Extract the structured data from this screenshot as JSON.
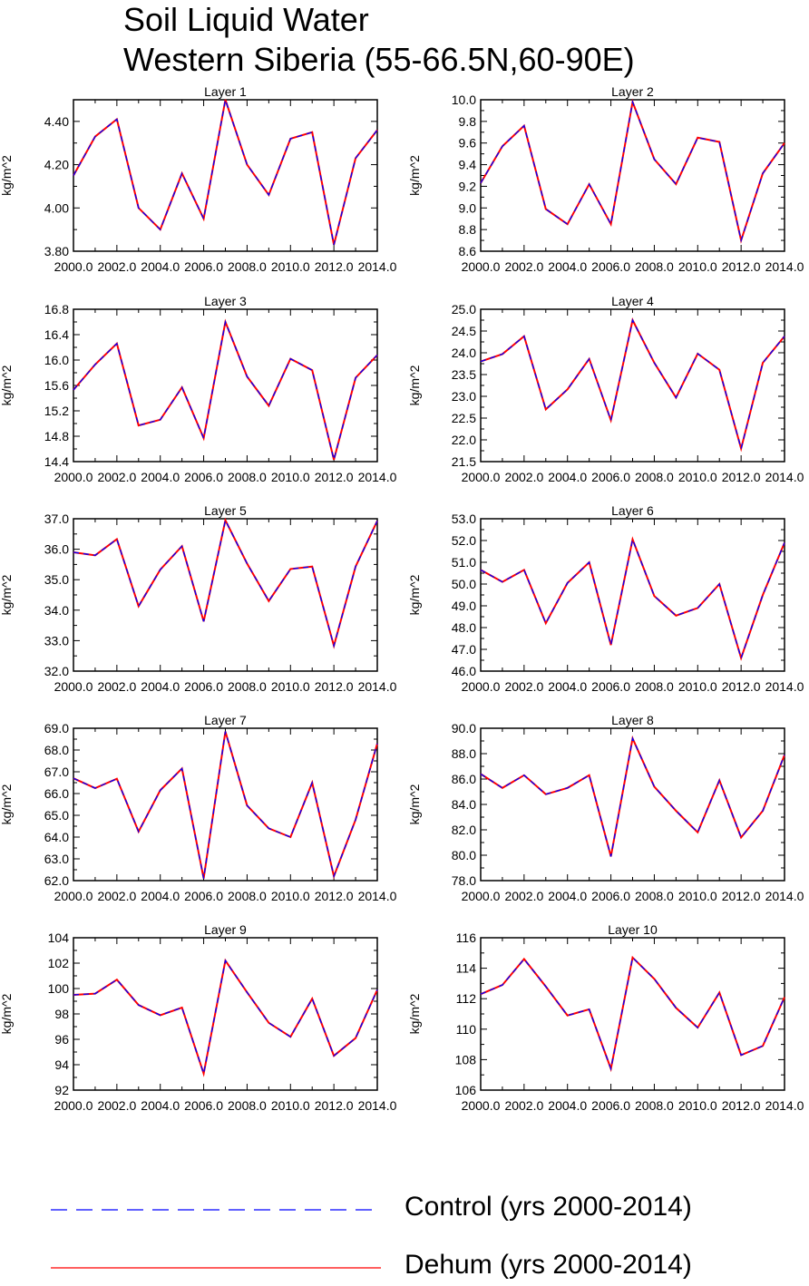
{
  "title": {
    "line1": "Soil Liquid Water",
    "line2": "Western Siberia (55-66.5N,60-90E)"
  },
  "colors": {
    "control": "#0000ff",
    "dehum": "#ff0000",
    "axis": "#000000"
  },
  "legend": [
    {
      "label": "Control (yrs 2000-2014)",
      "color": "#0000ff",
      "style": "dashed"
    },
    {
      "label": "Dehum (yrs 2000-2014)",
      "color": "#ff0000",
      "style": "solid"
    }
  ],
  "chart_data": [
    {
      "type": "line",
      "title": "Layer 1",
      "ylabel": "kg/m^2",
      "xlabel": "",
      "xlim": [
        2000,
        2014
      ],
      "ylim": [
        3.8,
        4.5
      ],
      "xticks": [
        2000,
        2002,
        2004,
        2006,
        2008,
        2010,
        2012,
        2014
      ],
      "xtick_labels": [
        "2000.0",
        "2002.0",
        "2004.0",
        "2006.0",
        "2008.0",
        "2010.0",
        "2012.0",
        "2014.0"
      ],
      "yticks": [
        3.8,
        4.0,
        4.2,
        4.4
      ],
      "ytick_labels": [
        "3.80",
        "4.00",
        "4.20",
        "4.40"
      ],
      "x": [
        2000,
        2001,
        2002,
        2003,
        2004,
        2005,
        2006,
        2007,
        2008,
        2009,
        2010,
        2011,
        2012,
        2013,
        2014
      ],
      "series": [
        {
          "name": "Dehum (yrs 2000-2014)",
          "values": [
            4.15,
            4.33,
            4.41,
            4.0,
            3.9,
            4.16,
            3.95,
            4.5,
            4.2,
            4.06,
            4.32,
            4.35,
            3.83,
            4.23,
            4.36
          ]
        },
        {
          "name": "Control (yrs 2000-2014)",
          "values": [
            4.15,
            4.33,
            4.41,
            4.0,
            3.9,
            4.16,
            3.95,
            4.5,
            4.2,
            4.06,
            4.32,
            4.35,
            3.83,
            4.23,
            4.36
          ]
        }
      ]
    },
    {
      "type": "line",
      "title": "Layer 2",
      "ylabel": "kg/m^2",
      "xlabel": "",
      "xlim": [
        2000,
        2014
      ],
      "ylim": [
        8.6,
        10.0
      ],
      "xticks": [
        2000,
        2002,
        2004,
        2006,
        2008,
        2010,
        2012,
        2014
      ],
      "xtick_labels": [
        "2000.0",
        "2002.0",
        "2004.0",
        "2006.0",
        "2008.0",
        "2010.0",
        "2012.0",
        "2014.0"
      ],
      "yticks": [
        8.6,
        8.8,
        9.0,
        9.2,
        9.4,
        9.6,
        9.8,
        10.0
      ],
      "ytick_labels": [
        "8.6",
        "8.8",
        "9.0",
        "9.2",
        "9.4",
        "9.6",
        "9.8",
        "10.0"
      ],
      "x": [
        2000,
        2001,
        2002,
        2003,
        2004,
        2005,
        2006,
        2007,
        2008,
        2009,
        2010,
        2011,
        2012,
        2013,
        2014
      ],
      "series": [
        {
          "name": "Dehum (yrs 2000-2014)",
          "values": [
            9.23,
            9.57,
            9.76,
            8.99,
            8.85,
            9.22,
            8.85,
            9.98,
            9.45,
            9.22,
            9.65,
            9.61,
            8.7,
            9.32,
            9.6
          ]
        },
        {
          "name": "Control (yrs 2000-2014)",
          "values": [
            9.23,
            9.57,
            9.76,
            8.99,
            8.85,
            9.22,
            8.85,
            9.98,
            9.45,
            9.22,
            9.65,
            9.61,
            8.7,
            9.32,
            9.6
          ]
        }
      ]
    },
    {
      "type": "line",
      "title": "Layer 3",
      "ylabel": "kg/m^2",
      "xlabel": "",
      "xlim": [
        2000,
        2014
      ],
      "ylim": [
        14.4,
        16.8
      ],
      "xticks": [
        2000,
        2002,
        2004,
        2006,
        2008,
        2010,
        2012,
        2014
      ],
      "xtick_labels": [
        "2000.0",
        "2002.0",
        "2004.0",
        "2006.0",
        "2008.0",
        "2010.0",
        "2012.0",
        "2014.0"
      ],
      "yticks": [
        14.4,
        14.8,
        15.2,
        15.6,
        16.0,
        16.4,
        16.8
      ],
      "ytick_labels": [
        "14.4",
        "14.8",
        "15.2",
        "15.6",
        "16.0",
        "16.4",
        "16.8"
      ],
      "x": [
        2000,
        2001,
        2002,
        2003,
        2004,
        2005,
        2006,
        2007,
        2008,
        2009,
        2010,
        2011,
        2012,
        2013,
        2014
      ],
      "series": [
        {
          "name": "Dehum (yrs 2000-2014)",
          "values": [
            15.53,
            15.93,
            16.26,
            14.97,
            15.06,
            15.57,
            14.77,
            16.6,
            15.74,
            15.28,
            16.02,
            15.84,
            14.43,
            15.72,
            16.08
          ]
        },
        {
          "name": "Control (yrs 2000-2014)",
          "values": [
            15.53,
            15.93,
            16.26,
            14.97,
            15.06,
            15.57,
            14.77,
            16.6,
            15.74,
            15.28,
            16.02,
            15.84,
            14.43,
            15.72,
            16.08
          ]
        }
      ]
    },
    {
      "type": "line",
      "title": "Layer 4",
      "ylabel": "kg/m^2",
      "xlabel": "",
      "xlim": [
        2000,
        2014
      ],
      "ylim": [
        21.5,
        25.0
      ],
      "xticks": [
        2000,
        2002,
        2004,
        2006,
        2008,
        2010,
        2012,
        2014
      ],
      "xtick_labels": [
        "2000.0",
        "2002.0",
        "2004.0",
        "2006.0",
        "2008.0",
        "2010.0",
        "2012.0",
        "2014.0"
      ],
      "yticks": [
        21.5,
        22.0,
        22.5,
        23.0,
        23.5,
        24.0,
        24.5,
        25.0
      ],
      "ytick_labels": [
        "21.5",
        "22.0",
        "22.5",
        "23.0",
        "23.5",
        "24.0",
        "24.5",
        "25.0"
      ],
      "x": [
        2000,
        2001,
        2002,
        2003,
        2004,
        2005,
        2006,
        2007,
        2008,
        2009,
        2010,
        2011,
        2012,
        2013,
        2014
      ],
      "series": [
        {
          "name": "Dehum (yrs 2000-2014)",
          "values": [
            23.8,
            23.97,
            24.38,
            22.7,
            23.16,
            23.86,
            22.45,
            24.75,
            23.77,
            22.97,
            23.98,
            23.61,
            21.8,
            23.77,
            24.38
          ]
        },
        {
          "name": "Control (yrs 2000-2014)",
          "values": [
            23.8,
            23.97,
            24.38,
            22.7,
            23.16,
            23.86,
            22.45,
            24.75,
            23.77,
            22.97,
            23.98,
            23.61,
            21.8,
            23.77,
            24.38
          ]
        }
      ]
    },
    {
      "type": "line",
      "title": "Layer 5",
      "ylabel": "kg/m^2",
      "xlabel": "",
      "xlim": [
        2000,
        2014
      ],
      "ylim": [
        32.0,
        37.0
      ],
      "xticks": [
        2000,
        2002,
        2004,
        2006,
        2008,
        2010,
        2012,
        2014
      ],
      "xtick_labels": [
        "2000.0",
        "2002.0",
        "2004.0",
        "2006.0",
        "2008.0",
        "2010.0",
        "2012.0",
        "2014.0"
      ],
      "yticks": [
        32.0,
        33.0,
        34.0,
        35.0,
        36.0,
        37.0
      ],
      "ytick_labels": [
        "32.0",
        "33.0",
        "34.0",
        "35.0",
        "36.0",
        "37.0"
      ],
      "x": [
        2000,
        2001,
        2002,
        2003,
        2004,
        2005,
        2006,
        2007,
        2008,
        2009,
        2010,
        2011,
        2012,
        2013,
        2014
      ],
      "series": [
        {
          "name": "Dehum (yrs 2000-2014)",
          "values": [
            35.9,
            35.8,
            36.33,
            34.13,
            35.33,
            36.1,
            33.63,
            36.95,
            35.53,
            34.3,
            35.35,
            35.43,
            32.83,
            35.43,
            36.93
          ]
        },
        {
          "name": "Control (yrs 2000-2014)",
          "values": [
            35.9,
            35.8,
            36.33,
            34.13,
            35.33,
            36.1,
            33.63,
            36.95,
            35.53,
            34.3,
            35.35,
            35.43,
            32.83,
            35.43,
            36.93
          ]
        }
      ]
    },
    {
      "type": "line",
      "title": "Layer 6",
      "ylabel": "kg/m^2",
      "xlabel": "",
      "xlim": [
        2000,
        2014
      ],
      "ylim": [
        46.0,
        53.0
      ],
      "xticks": [
        2000,
        2002,
        2004,
        2006,
        2008,
        2010,
        2012,
        2014
      ],
      "xtick_labels": [
        "2000.0",
        "2002.0",
        "2004.0",
        "2006.0",
        "2008.0",
        "2010.0",
        "2012.0",
        "2014.0"
      ],
      "yticks": [
        46.0,
        47.0,
        48.0,
        49.0,
        50.0,
        51.0,
        52.0,
        53.0
      ],
      "ytick_labels": [
        "46.0",
        "47.0",
        "48.0",
        "49.0",
        "50.0",
        "51.0",
        "52.0",
        "53.0"
      ],
      "x": [
        2000,
        2001,
        2002,
        2003,
        2004,
        2005,
        2006,
        2007,
        2008,
        2009,
        2010,
        2011,
        2012,
        2013,
        2014
      ],
      "series": [
        {
          "name": "Dehum (yrs 2000-2014)",
          "values": [
            50.65,
            50.1,
            50.65,
            48.2,
            50.05,
            51.0,
            47.2,
            52.05,
            49.45,
            48.55,
            48.9,
            50.0,
            46.6,
            49.5,
            51.9
          ]
        },
        {
          "name": "Control (yrs 2000-2014)",
          "values": [
            50.65,
            50.1,
            50.65,
            48.2,
            50.05,
            51.0,
            47.2,
            52.05,
            49.45,
            48.55,
            48.9,
            50.0,
            46.6,
            49.5,
            51.9
          ]
        }
      ]
    },
    {
      "type": "line",
      "title": "Layer 7",
      "ylabel": "kg/m^2",
      "xlabel": "",
      "xlim": [
        2000,
        2014
      ],
      "ylim": [
        62.0,
        69.0
      ],
      "xticks": [
        2000,
        2002,
        2004,
        2006,
        2008,
        2010,
        2012,
        2014
      ],
      "xtick_labels": [
        "2000.0",
        "2002.0",
        "2004.0",
        "2006.0",
        "2008.0",
        "2010.0",
        "2012.0",
        "2014.0"
      ],
      "yticks": [
        62.0,
        63.0,
        64.0,
        65.0,
        66.0,
        67.0,
        68.0,
        69.0
      ],
      "ytick_labels": [
        "62.0",
        "63.0",
        "64.0",
        "65.0",
        "66.0",
        "67.0",
        "68.0",
        "69.0"
      ],
      "x": [
        2000,
        2001,
        2002,
        2003,
        2004,
        2005,
        2006,
        2007,
        2008,
        2009,
        2010,
        2011,
        2012,
        2013,
        2014
      ],
      "series": [
        {
          "name": "Dehum (yrs 2000-2014)",
          "values": [
            66.7,
            66.25,
            66.68,
            64.25,
            66.15,
            67.15,
            62.1,
            68.85,
            65.45,
            64.4,
            64.0,
            66.5,
            62.2,
            64.8,
            68.3
          ]
        },
        {
          "name": "Control (yrs 2000-2014)",
          "values": [
            66.7,
            66.25,
            66.68,
            64.25,
            66.15,
            67.15,
            62.1,
            68.85,
            65.45,
            64.4,
            64.0,
            66.5,
            62.2,
            64.8,
            68.3
          ]
        }
      ]
    },
    {
      "type": "line",
      "title": "Layer 8",
      "ylabel": "kg/m^2",
      "xlabel": "",
      "xlim": [
        2000,
        2014
      ],
      "ylim": [
        78.0,
        90.0
      ],
      "xticks": [
        2000,
        2002,
        2004,
        2006,
        2008,
        2010,
        2012,
        2014
      ],
      "xtick_labels": [
        "2000.0",
        "2002.0",
        "2004.0",
        "2006.0",
        "2008.0",
        "2010.0",
        "2012.0",
        "2014.0"
      ],
      "yticks": [
        78.0,
        80.0,
        82.0,
        84.0,
        86.0,
        88.0,
        90.0
      ],
      "ytick_labels": [
        "78.0",
        "80.0",
        "82.0",
        "84.0",
        "86.0",
        "88.0",
        "90.0"
      ],
      "x": [
        2000,
        2001,
        2002,
        2003,
        2004,
        2005,
        2006,
        2007,
        2008,
        2009,
        2010,
        2011,
        2012,
        2013,
        2014
      ],
      "series": [
        {
          "name": "Dehum (yrs 2000-2014)",
          "values": [
            86.4,
            85.3,
            86.3,
            84.8,
            85.3,
            86.3,
            79.9,
            89.2,
            85.4,
            83.5,
            81.8,
            85.9,
            81.4,
            83.5,
            87.9
          ]
        },
        {
          "name": "Control (yrs 2000-2014)",
          "values": [
            86.4,
            85.3,
            86.3,
            84.8,
            85.3,
            86.3,
            79.9,
            89.2,
            85.4,
            83.5,
            81.8,
            85.9,
            81.4,
            83.5,
            87.9
          ]
        }
      ]
    },
    {
      "type": "line",
      "title": "Layer 9",
      "ylabel": "kg/m^2",
      "xlabel": "",
      "xlim": [
        2000,
        2014
      ],
      "ylim": [
        92,
        104
      ],
      "xticks": [
        2000,
        2002,
        2004,
        2006,
        2008,
        2010,
        2012,
        2014
      ],
      "xtick_labels": [
        "2000.0",
        "2002.0",
        "2004.0",
        "2006.0",
        "2008.0",
        "2010.0",
        "2012.0",
        "2014.0"
      ],
      "yticks": [
        92,
        94,
        96,
        98,
        100,
        102,
        104
      ],
      "ytick_labels": [
        "92",
        "94",
        "96",
        "98",
        "100",
        "102",
        "104"
      ],
      "x": [
        2000,
        2001,
        2002,
        2003,
        2004,
        2005,
        2006,
        2007,
        2008,
        2009,
        2010,
        2011,
        2012,
        2013,
        2014
      ],
      "series": [
        {
          "name": "Dehum (yrs 2000-2014)",
          "values": [
            99.5,
            99.6,
            100.7,
            98.7,
            97.9,
            98.5,
            93.3,
            102.2,
            99.7,
            97.3,
            96.2,
            99.2,
            94.7,
            96.1,
            99.9
          ]
        },
        {
          "name": "Control (yrs 2000-2014)",
          "values": [
            99.5,
            99.6,
            100.7,
            98.7,
            97.9,
            98.5,
            93.3,
            102.2,
            99.7,
            97.3,
            96.2,
            99.2,
            94.7,
            96.1,
            99.9
          ]
        }
      ]
    },
    {
      "type": "line",
      "title": "Layer 10",
      "ylabel": "kg/m^2",
      "xlabel": "",
      "xlim": [
        2000,
        2014
      ],
      "ylim": [
        106,
        116
      ],
      "xticks": [
        2000,
        2002,
        2004,
        2006,
        2008,
        2010,
        2012,
        2014
      ],
      "xtick_labels": [
        "2000.0",
        "2002.0",
        "2004.0",
        "2006.0",
        "2008.0",
        "2010.0",
        "2012.0",
        "2014.0"
      ],
      "yticks": [
        106,
        108,
        110,
        112,
        114,
        116
      ],
      "ytick_labels": [
        "106",
        "108",
        "110",
        "112",
        "114",
        "116"
      ],
      "x": [
        2000,
        2001,
        2002,
        2003,
        2004,
        2005,
        2006,
        2007,
        2008,
        2009,
        2010,
        2011,
        2012,
        2013,
        2014
      ],
      "series": [
        {
          "name": "Dehum (yrs 2000-2014)",
          "values": [
            112.3,
            112.9,
            114.6,
            112.8,
            110.9,
            111.3,
            107.4,
            114.7,
            113.3,
            111.4,
            110.1,
            112.4,
            108.3,
            108.9,
            112.1
          ]
        },
        {
          "name": "Control (yrs 2000-2014)",
          "values": [
            112.3,
            112.9,
            114.6,
            112.8,
            110.9,
            111.3,
            107.4,
            114.7,
            113.3,
            111.4,
            110.1,
            112.4,
            108.3,
            108.9,
            112.1
          ]
        }
      ]
    }
  ]
}
